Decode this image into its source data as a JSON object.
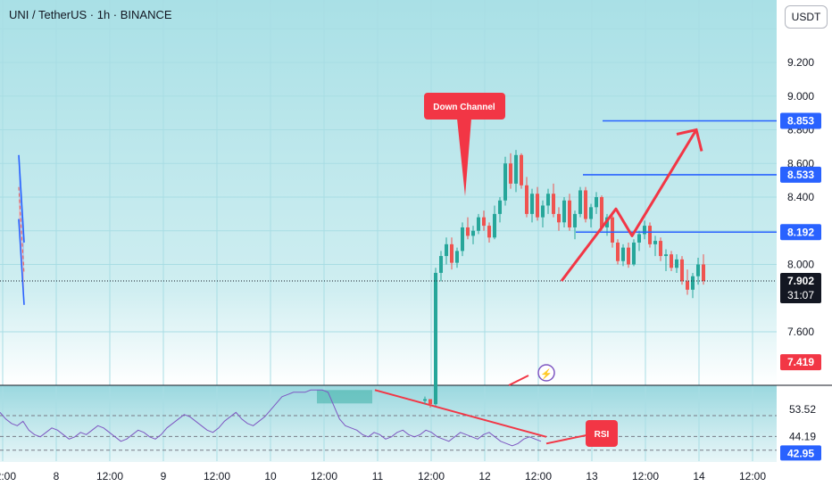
{
  "header": {
    "title": "UNI / TetherUS · 1h · BINANCE"
  },
  "quote_currency": "USDT",
  "colors": {
    "up": "#26a69a",
    "down": "#ef5350",
    "channel_line": "#2962ff",
    "channel_upper_fill": "#90b8f0",
    "channel_lower_fill": "#f0a8b0",
    "target_line": "#2962ff",
    "arrow": "#f23645",
    "rsi_line": "#7e57c2",
    "label_blue": "#2962ff",
    "label_red": "#f23645",
    "label_dark": "#131722",
    "grid": "#a8dde4",
    "background_top": "#a9e0e6",
    "background_bottom": "#ffffff"
  },
  "chart_data": [
    {
      "type": "candlestick",
      "symbol": "UNI / TetherUS",
      "interval": "1h",
      "exchange": "BINANCE",
      "x_ticks": [
        "12:00",
        "8",
        "12:00",
        "9",
        "12:00",
        "10",
        "12:00",
        "11",
        "12:00",
        "12",
        "12:00",
        "13",
        "12:00",
        "14",
        "12:00"
      ],
      "y_ticks": [
        7.6,
        8.0,
        8.2,
        8.4,
        8.6,
        8.8,
        9.0,
        9.2
      ],
      "y_tick_labels": [
        "7.600",
        "8.000",
        "8.200",
        "8.400",
        "8.600",
        "8.800",
        "9.000",
        "9.200"
      ],
      "ylim": [
        7.18,
        9.5
      ],
      "grid": true,
      "candles_o_h_l_c": [
        [
          7.19,
          7.215,
          7.17,
          7.2
        ],
        [
          7.2,
          7.2,
          7.15,
          7.17
        ],
        [
          7.17,
          7.98,
          7.16,
          7.95
        ],
        [
          7.95,
          8.08,
          7.9,
          8.05
        ],
        [
          8.05,
          8.16,
          8.0,
          8.12
        ],
        [
          8.12,
          8.16,
          7.97,
          8.01
        ],
        [
          8.01,
          8.1,
          7.98,
          8.08
        ],
        [
          8.08,
          8.25,
          8.05,
          8.22
        ],
        [
          8.22,
          8.28,
          8.15,
          8.17
        ],
        [
          8.17,
          8.23,
          8.12,
          8.2
        ],
        [
          8.2,
          8.3,
          8.18,
          8.28
        ],
        [
          8.28,
          8.32,
          8.2,
          8.23
        ],
        [
          8.23,
          8.25,
          8.13,
          8.16
        ],
        [
          8.16,
          8.35,
          8.15,
          8.3
        ],
        [
          8.3,
          8.4,
          8.25,
          8.38
        ],
        [
          8.38,
          8.64,
          8.35,
          8.6
        ],
        [
          8.6,
          8.66,
          8.45,
          8.48
        ],
        [
          8.48,
          8.68,
          8.43,
          8.65
        ],
        [
          8.65,
          8.66,
          8.45,
          8.47
        ],
        [
          8.47,
          8.52,
          8.28,
          8.3
        ],
        [
          8.3,
          8.45,
          8.25,
          8.42
        ],
        [
          8.42,
          8.46,
          8.26,
          8.28
        ],
        [
          8.28,
          8.38,
          8.22,
          8.35
        ],
        [
          8.35,
          8.45,
          8.3,
          8.42
        ],
        [
          8.42,
          8.48,
          8.28,
          8.3
        ],
        [
          8.3,
          8.34,
          8.2,
          8.25
        ],
        [
          8.25,
          8.4,
          8.22,
          8.38
        ],
        [
          8.38,
          8.42,
          8.2,
          8.22
        ],
        [
          8.22,
          8.32,
          8.15,
          8.3
        ],
        [
          8.3,
          8.46,
          8.28,
          8.44
        ],
        [
          8.44,
          8.46,
          8.25,
          8.27
        ],
        [
          8.27,
          8.36,
          8.22,
          8.34
        ],
        [
          8.34,
          8.43,
          8.3,
          8.4
        ],
        [
          8.4,
          8.41,
          8.2,
          8.22
        ],
        [
          8.22,
          8.3,
          8.17,
          8.28
        ],
        [
          8.28,
          8.3,
          8.1,
          8.13
        ],
        [
          8.13,
          8.15,
          8.0,
          8.02
        ],
        [
          8.02,
          8.12,
          7.99,
          8.1
        ],
        [
          8.1,
          8.13,
          7.98,
          8.0
        ],
        [
          8.0,
          8.15,
          7.99,
          8.13
        ],
        [
          8.13,
          8.2,
          8.08,
          8.18
        ],
        [
          8.18,
          8.26,
          8.15,
          8.23
        ],
        [
          8.23,
          8.25,
          8.1,
          8.12
        ],
        [
          8.12,
          8.17,
          8.05,
          8.14
        ],
        [
          8.14,
          8.16,
          8.02,
          8.05
        ],
        [
          8.05,
          8.09,
          7.96,
          8.06
        ],
        [
          8.06,
          8.08,
          7.96,
          7.98
        ],
        [
          7.98,
          8.06,
          7.95,
          8.03
        ],
        [
          8.03,
          8.05,
          7.88,
          7.9
        ],
        [
          7.9,
          7.97,
          7.82,
          7.85
        ],
        [
          7.85,
          7.95,
          7.8,
          7.93
        ],
        [
          7.93,
          8.04,
          7.88,
          8.0
        ],
        [
          8.0,
          8.06,
          7.88,
          7.902
        ]
      ],
      "current_price": 7.902,
      "countdown": "31:07",
      "annotations": {
        "down_channel_label": "Down Channel",
        "down_channel": {
          "upper": [
            [
              8.65,
              7.15
            ],
            [
              8.13,
              7.2
            ]
          ],
          "lower": [
            [
              8.27,
              7.15
            ],
            [
              7.76,
              7.2
            ]
          ]
        },
        "target_levels": [
          8.853,
          8.533,
          8.192
        ],
        "projected_path": [
          [
            7.902,
            7.23
          ],
          [
            8.33,
            7.37
          ],
          [
            8.17,
            7.44
          ],
          [
            8.8,
            7.57
          ]
        ],
        "extra_price_label": 7.419
      },
      "price_labels": [
        "8.853",
        "8.533",
        "8.192",
        "7.902",
        "7.419"
      ]
    },
    {
      "type": "line",
      "name": "RSI",
      "y_tick_labels": [
        "53.52",
        "44.19",
        "42.95"
      ],
      "levels": [
        53.52,
        44.19,
        42.95
      ],
      "values": [
        55,
        52,
        50,
        49,
        51,
        47,
        45,
        44,
        46,
        48,
        47,
        45,
        43,
        44,
        46,
        45,
        47,
        49,
        48,
        46,
        44,
        42,
        43,
        45,
        47,
        46,
        44,
        43,
        45,
        48,
        50,
        52,
        54,
        53,
        51,
        49,
        47,
        46,
        48,
        51,
        53,
        55,
        52,
        50,
        49,
        51,
        53,
        56,
        59,
        62,
        63,
        64,
        64,
        64,
        65,
        65,
        65,
        64,
        58,
        52,
        49,
        48,
        47,
        45,
        44,
        46,
        45,
        43,
        44,
        46,
        47,
        45,
        44,
        45,
        47,
        46,
        44,
        43,
        42,
        44,
        46,
        45,
        44,
        43,
        45,
        46,
        44,
        42,
        41,
        40,
        41,
        43,
        44,
        43,
        42
      ]
    }
  ],
  "callouts": {
    "down_channel": "Down Channel",
    "rsi": "RSI"
  }
}
